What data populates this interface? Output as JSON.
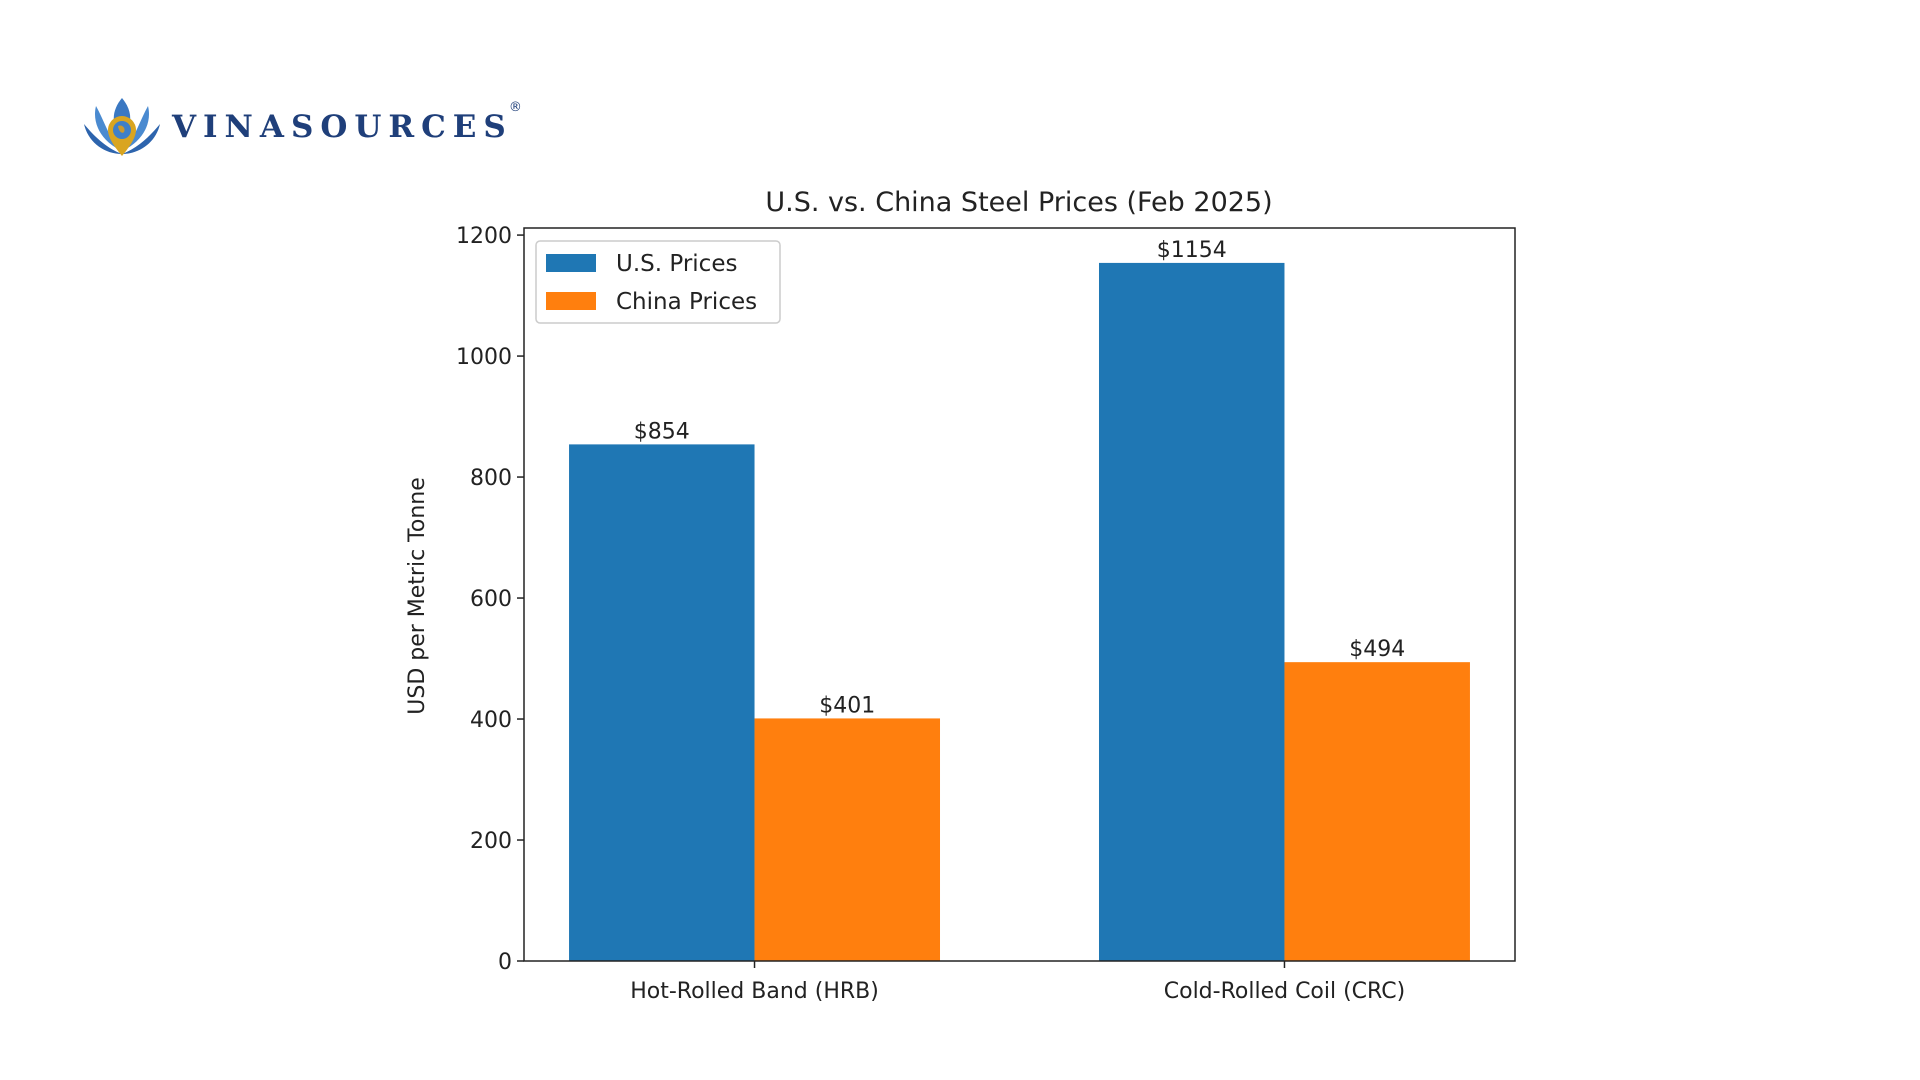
{
  "logo": {
    "text": "VINASOURCES",
    "registered": "®"
  },
  "chart_data": {
    "type": "bar",
    "title": "U.S. vs. China Steel Prices (Feb 2025)",
    "xlabel": "",
    "ylabel": "USD per Metric Tonne",
    "categories": [
      "Hot-Rolled Band (HRB)",
      "Cold-Rolled Coil (CRC)"
    ],
    "series": [
      {
        "name": "U.S. Prices",
        "values": [
          854,
          1154
        ],
        "labels": [
          "$854",
          "$1154"
        ],
        "color": "#1f77b4"
      },
      {
        "name": "China Prices",
        "values": [
          401,
          494
        ],
        "labels": [
          "$401",
          "$494"
        ],
        "color": "#ff7f0e"
      }
    ],
    "ylim": [
      0,
      1211.7
    ],
    "yticks": [
      0,
      200,
      400,
      600,
      800,
      1000,
      1200
    ],
    "grid": false,
    "legend": "upper-left"
  }
}
